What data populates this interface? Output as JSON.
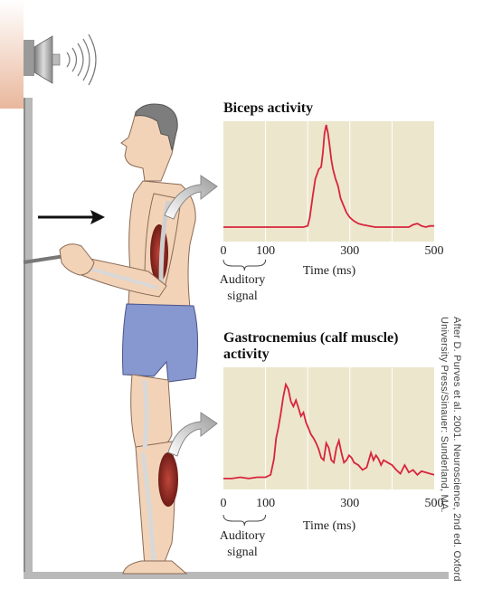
{
  "colors": {
    "plot_background": "#ece6cc",
    "trace": "#d8243c",
    "skin": "#f3d3b8",
    "shorts": "#8797cf",
    "muscle": "#9b2a22",
    "wall": "#e9b89d",
    "arrow_fill": "#b9b9b9"
  },
  "figure": {
    "icons": [
      "speaker-icon",
      "sound-waves-icon",
      "push-arrow-icon",
      "handle-icon"
    ],
    "credit": {
      "line1": "After D. Purves et al. 2001. Neuroscience, 2nd ed. Oxford",
      "line2": "University Press/Sinauer: Sunderland, MA."
    }
  },
  "chart_data": [
    {
      "type": "line",
      "title": "Biceps activity",
      "xlabel": "Time (ms)",
      "xlim": [
        0,
        500
      ],
      "xticks": [
        0,
        100,
        300,
        500
      ],
      "xtick_labels": [
        "0",
        "100",
        "300",
        "500"
      ],
      "annotation": {
        "line1": "Auditory",
        "line2": "signal",
        "span": [
          0,
          100
        ]
      },
      "grid": true,
      "ylim": [
        0,
        1
      ],
      "series": [
        {
          "x": [
            0,
            40,
            80,
            120,
            160,
            190,
            200,
            205,
            212,
            218,
            222,
            226,
            232,
            236,
            240,
            244,
            248,
            252,
            256,
            260,
            266,
            272,
            278,
            285,
            292,
            300,
            310,
            320,
            330,
            345,
            360,
            380,
            400,
            420,
            440,
            450,
            460,
            470,
            480,
            490,
            500
          ],
          "y": [
            0.12,
            0.12,
            0.12,
            0.12,
            0.12,
            0.12,
            0.13,
            0.2,
            0.38,
            0.52,
            0.56,
            0.6,
            0.62,
            0.74,
            0.9,
            0.97,
            0.9,
            0.8,
            0.68,
            0.6,
            0.52,
            0.46,
            0.36,
            0.3,
            0.24,
            0.2,
            0.17,
            0.15,
            0.14,
            0.13,
            0.12,
            0.12,
            0.12,
            0.12,
            0.12,
            0.14,
            0.15,
            0.13,
            0.12,
            0.13,
            0.13
          ]
        }
      ]
    },
    {
      "type": "line",
      "title": "Gastrocnemius (calf muscle) activity",
      "title_line1": "Gastrocnemius (calf muscle)",
      "title_line2": "activity",
      "xlabel": "Time (ms)",
      "xlim": [
        0,
        500
      ],
      "xticks": [
        0,
        100,
        300,
        500
      ],
      "xtick_labels": [
        "0",
        "100",
        "300",
        "500"
      ],
      "annotation": {
        "line1": "Auditory",
        "line2": "signal",
        "span": [
          0,
          100
        ]
      },
      "grid": true,
      "ylim": [
        0,
        1
      ],
      "series": [
        {
          "x": [
            0,
            20,
            40,
            60,
            80,
            100,
            112,
            120,
            125,
            130,
            136,
            142,
            148,
            154,
            160,
            166,
            172,
            178,
            184,
            190,
            196,
            202,
            208,
            214,
            220,
            226,
            232,
            238,
            244,
            250,
            256,
            262,
            268,
            274,
            280,
            286,
            292,
            298,
            304,
            310,
            320,
            330,
            340,
            350,
            356,
            362,
            368,
            374,
            380,
            390,
            400,
            410,
            420,
            430,
            440,
            450,
            460,
            470,
            480,
            490,
            500
          ],
          "y": [
            0.09,
            0.09,
            0.1,
            0.09,
            0.1,
            0.1,
            0.12,
            0.25,
            0.42,
            0.5,
            0.62,
            0.76,
            0.86,
            0.82,
            0.72,
            0.68,
            0.73,
            0.67,
            0.6,
            0.63,
            0.55,
            0.5,
            0.45,
            0.42,
            0.38,
            0.33,
            0.26,
            0.24,
            0.38,
            0.34,
            0.24,
            0.22,
            0.34,
            0.4,
            0.3,
            0.22,
            0.24,
            0.28,
            0.26,
            0.22,
            0.2,
            0.16,
            0.18,
            0.3,
            0.24,
            0.28,
            0.25,
            0.2,
            0.24,
            0.22,
            0.2,
            0.16,
            0.13,
            0.2,
            0.14,
            0.16,
            0.12,
            0.15,
            0.14,
            0.13,
            0.12
          ]
        }
      ]
    }
  ]
}
